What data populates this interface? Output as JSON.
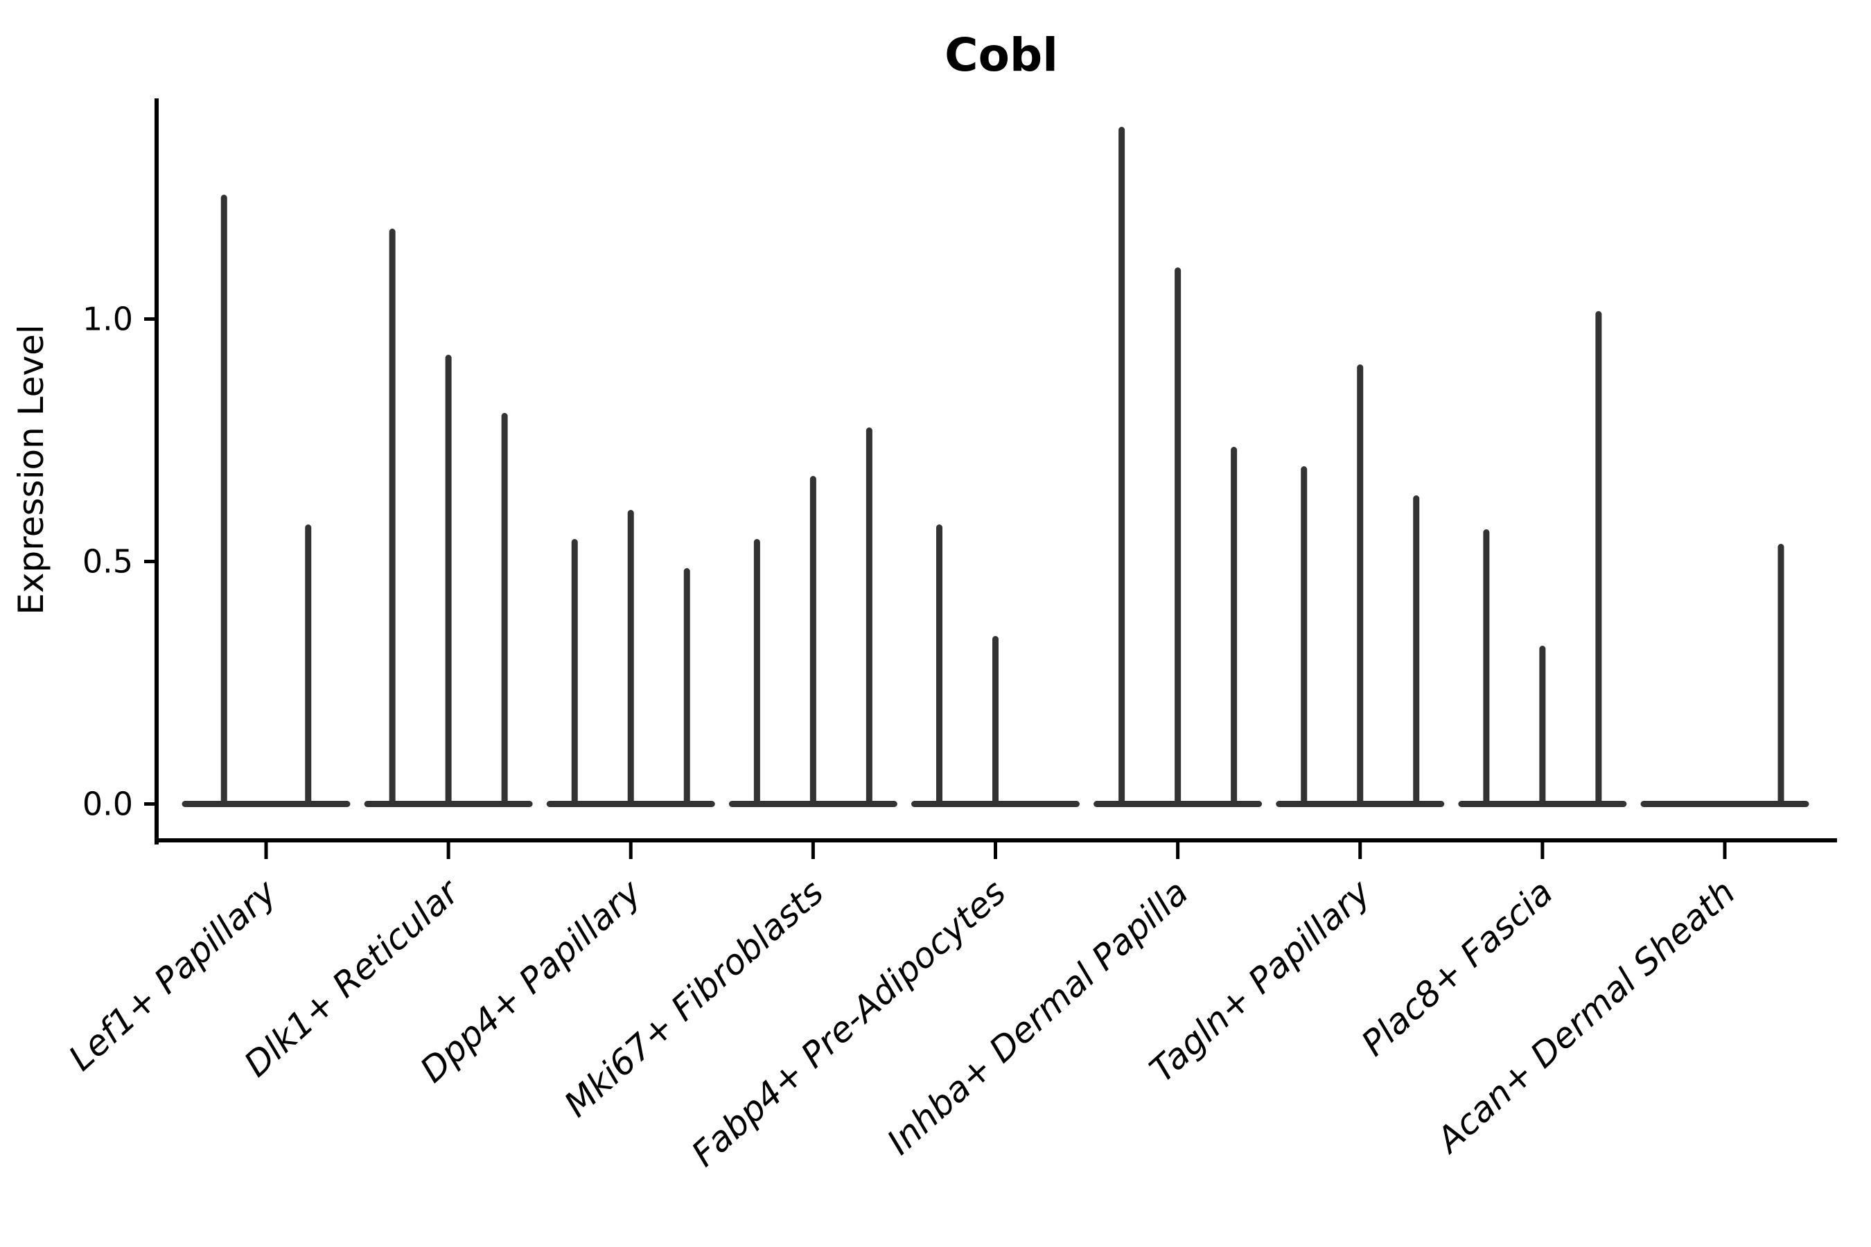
{
  "title": "Cobl",
  "axes": {
    "ylabel": "Expression Level",
    "ytick_labels": [
      "0.0",
      "0.5",
      "1.0"
    ]
  },
  "colors": {
    "violin": "#333333",
    "axis": "#000000",
    "background": "#ffffff",
    "text": "#000000"
  },
  "chart_data": {
    "type": "violin",
    "title": "Cobl",
    "xlabel": "",
    "ylabel": "Expression Level",
    "ylim": [
      -0.075,
      1.455
    ],
    "yticks": [
      0.0,
      0.5,
      1.0
    ],
    "grid": false,
    "legend": "none",
    "x_tick_rotation_deg": 42,
    "x_tick_style": "italic",
    "categories": [
      "Lef1+ Papillary",
      "Dlk1+ Reticular",
      "Dpp4+ Papillary",
      "Mki67+ Fibroblasts",
      "Fabp4+ Pre-Adipocytes",
      "Inhba+ Dermal Papilla",
      "Tagln+ Papillary",
      "Plac8+ Fascia",
      "Acan+ Dermal Sheath"
    ],
    "groups": [
      {
        "label": "Lef1+ Papillary",
        "violin_max_values": [
          1.25,
          0.57
        ]
      },
      {
        "label": "Dlk1+ Reticular",
        "violin_max_values": [
          1.18,
          0.92,
          0.8
        ]
      },
      {
        "label": "Dpp4+ Papillary",
        "violin_max_values": [
          0.54,
          0.6,
          0.48
        ]
      },
      {
        "label": "Mki67+ Fibroblasts",
        "violin_max_values": [
          0.54,
          0.67,
          0.77
        ]
      },
      {
        "label": "Fabp4+ Pre-Adipocytes",
        "violin_max_values": [
          0.57,
          0.34,
          0.0
        ]
      },
      {
        "label": "Inhba+ Dermal Papilla",
        "violin_max_values": [
          1.39,
          1.1,
          0.73
        ]
      },
      {
        "label": "Tagln+ Papillary",
        "violin_max_values": [
          0.69,
          0.9,
          0.63
        ]
      },
      {
        "label": "Plac8+ Fascia",
        "violin_max_values": [
          0.56,
          0.32,
          1.01
        ]
      },
      {
        "label": "Acan+ Dermal Sheath",
        "violin_max_values": [
          0.0,
          0.0,
          0.53
        ]
      }
    ],
    "note": "Each group shows 2-3 thin violins; values are the max expression (spike top). Violins with 0 are flat baselines."
  }
}
